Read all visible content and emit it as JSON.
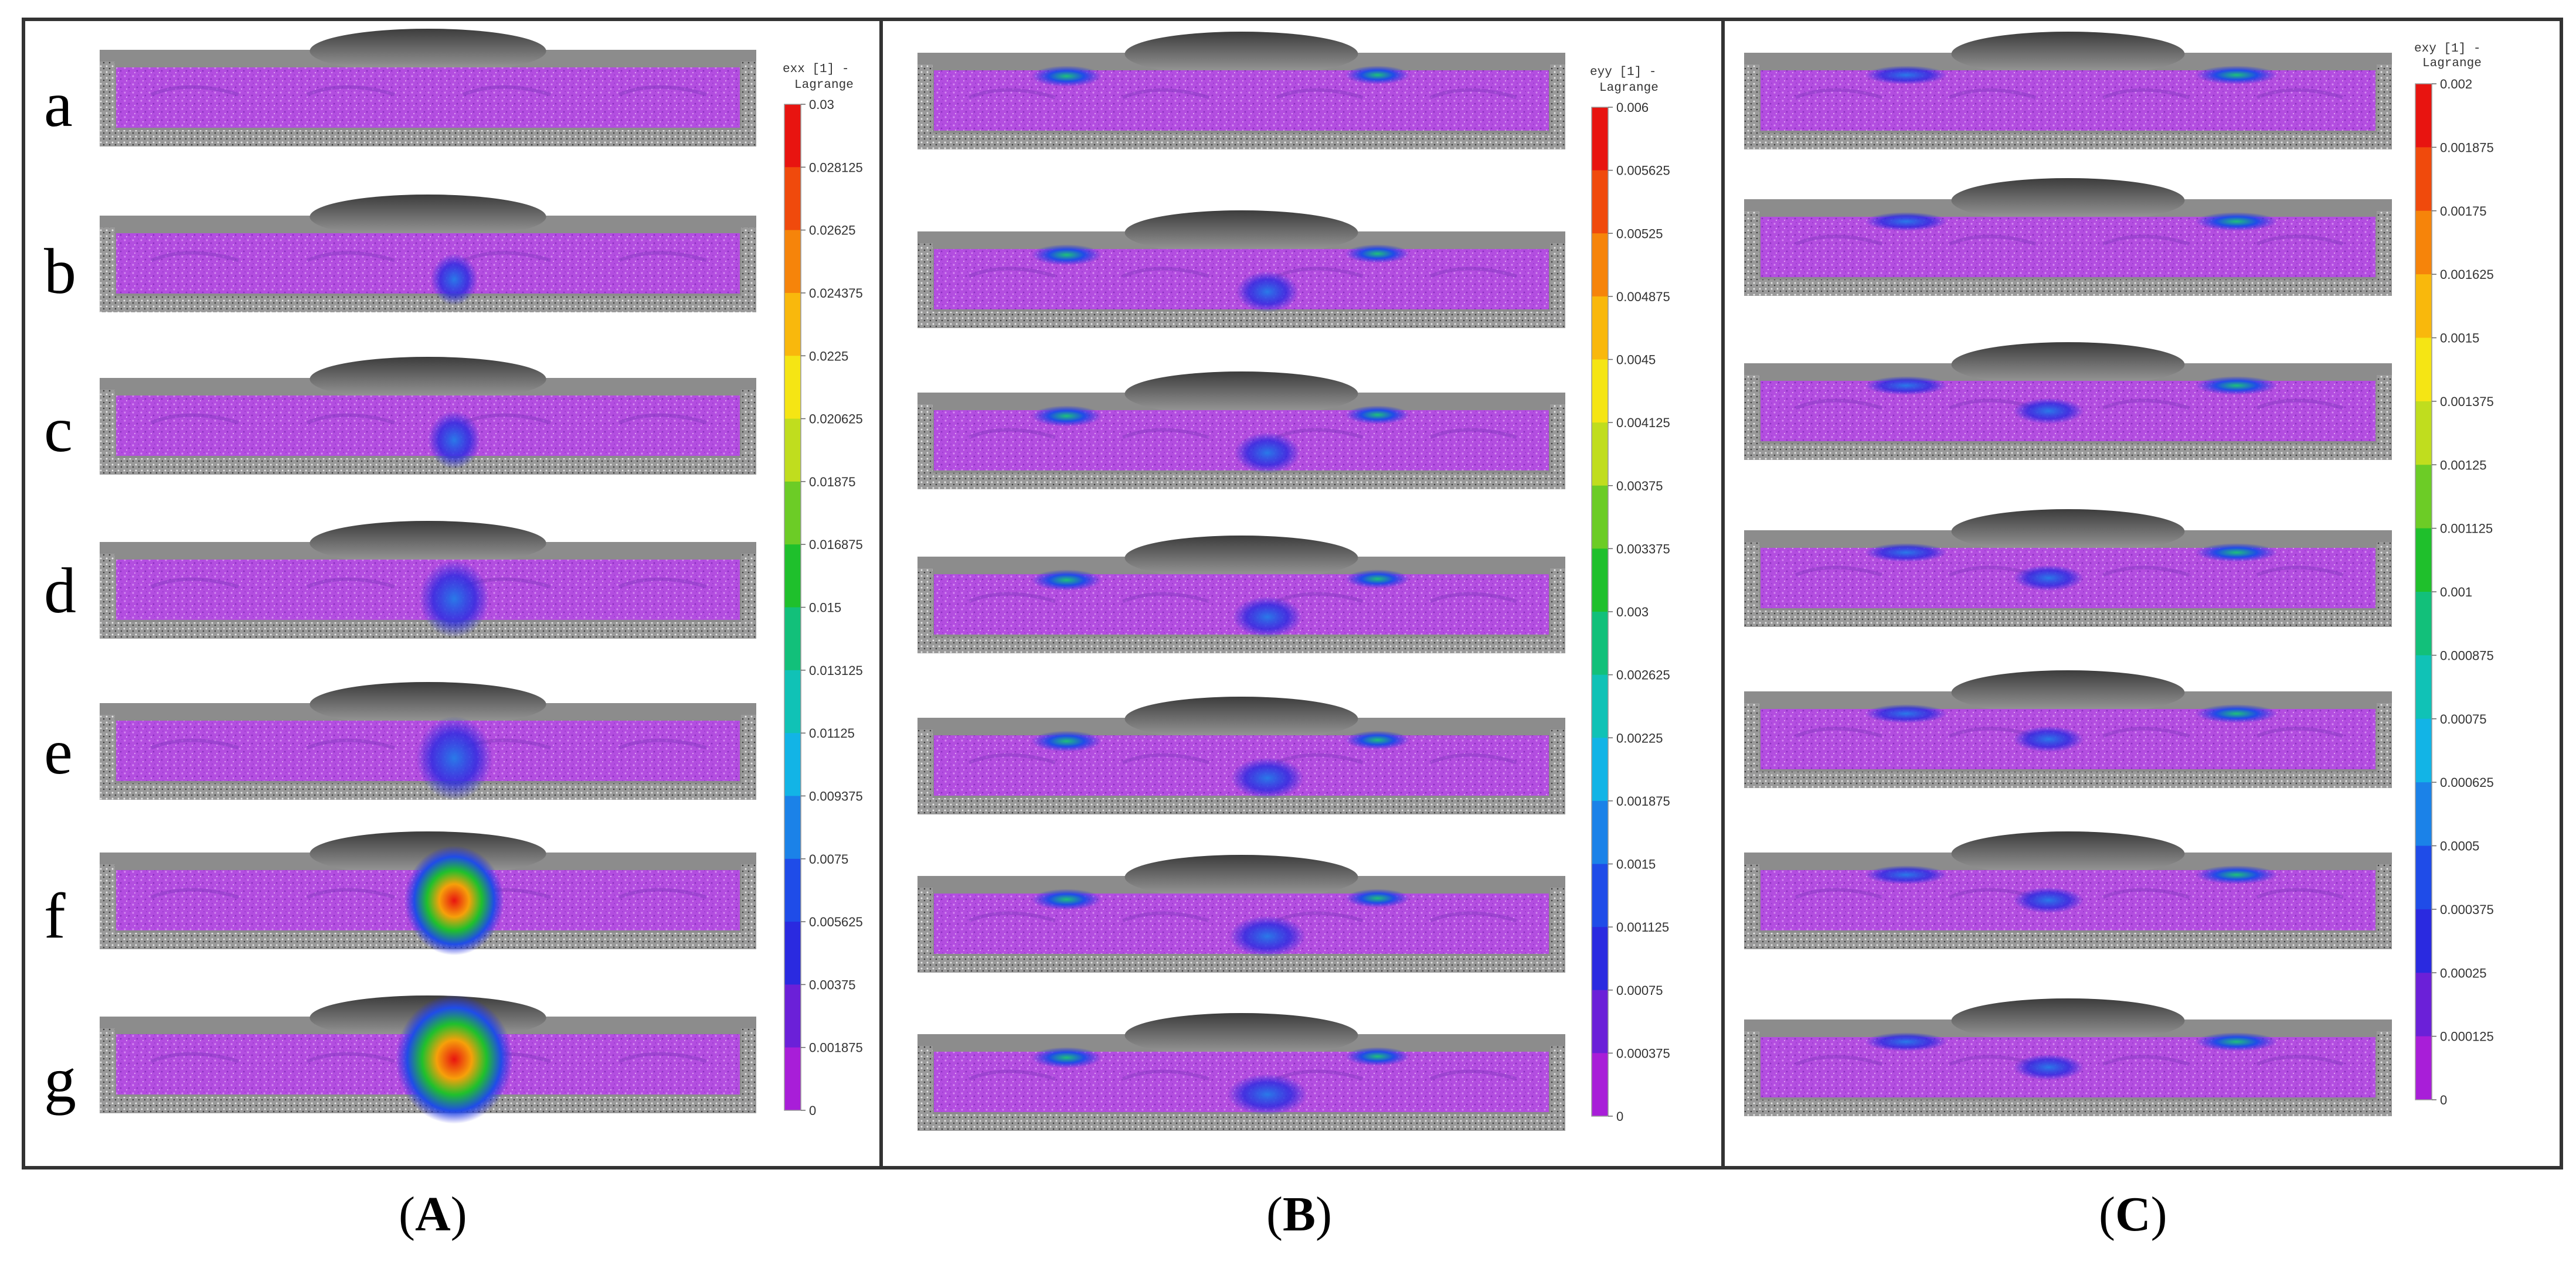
{
  "row_letters": [
    "a",
    "b",
    "c",
    "d",
    "e",
    "f",
    "g"
  ],
  "panels": [
    {
      "caption": {
        "open": "(",
        "letter": "A",
        "close": ")"
      },
      "colorbar": {
        "title_line1": "exx [1] -",
        "title_line2": "Lagrange",
        "ticks": [
          "0.03",
          "0.028125",
          "0.02625",
          "0.024375",
          "0.0225",
          "0.020625",
          "0.01875",
          "0.016875",
          "0.015",
          "0.013125",
          "0.01125",
          "0.009375",
          "0.0075",
          "0.005625",
          "0.00375",
          "0.001875",
          "0"
        ]
      }
    },
    {
      "caption": {
        "open": "(",
        "letter": "B",
        "close": ")"
      },
      "colorbar": {
        "title_line1": "eyy [1] -",
        "title_line2": "Lagrange",
        "ticks": [
          "0.006",
          "0.005625",
          "0.00525",
          "0.004875",
          "0.0045",
          "0.004125",
          "0.00375",
          "0.003375",
          "0.003",
          "0.002625",
          "0.00225",
          "0.001875",
          "0.0015",
          "0.001125",
          "0.00075",
          "0.000375",
          "0"
        ]
      }
    },
    {
      "caption": {
        "open": "(",
        "letter": "C",
        "close": ")"
      },
      "colorbar": {
        "title_line1": "exy [1] -",
        "title_line2": "Lagrange",
        "ticks": [
          "0.002",
          "0.001875",
          "0.00175",
          "0.001625",
          "0.0015",
          "0.001375",
          "0.00125",
          "0.001125",
          "0.001",
          "0.000875",
          "0.00075",
          "0.000625",
          "0.0005",
          "0.000375",
          "0.00025",
          "0.000125",
          "0"
        ]
      }
    }
  ],
  "colors": {
    "colorbar_top_to_bottom": [
      "#e81410",
      "#f04a0c",
      "#f6840a",
      "#f9b80c",
      "#f5e514",
      "#c0dd1e",
      "#6ccc26",
      "#1fc02c",
      "#12c07a",
      "#10c2b6",
      "#12b4e6",
      "#1b82e8",
      "#1f4ce8",
      "#2a2ae0",
      "#6b20d8",
      "#a81ed8",
      "#e030e4"
    ],
    "strain_field_base": "#b34ee0",
    "photo_gray": "#7a7a7a"
  }
}
